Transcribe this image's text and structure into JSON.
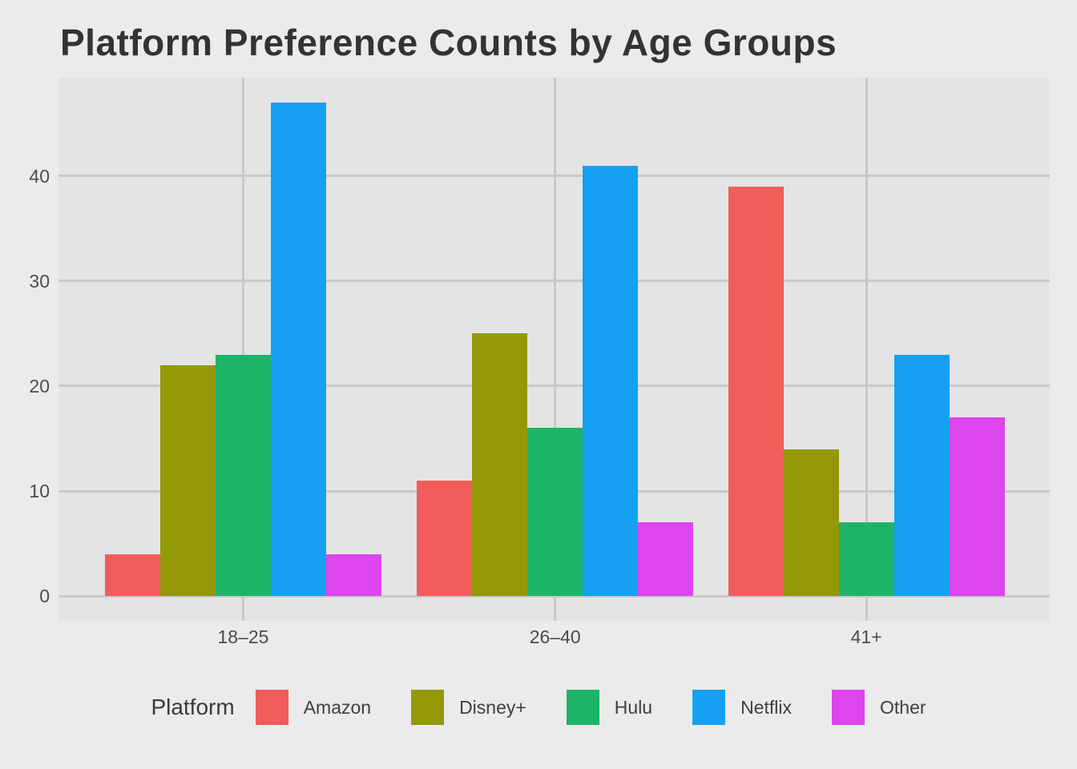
{
  "title": "Platform Preference Counts by Age Groups",
  "colors": {
    "background": "#EBEBEB",
    "panel": "#E4E4E4",
    "gridline": "#C9C9C9",
    "title_text": "#333333",
    "axis_text": "#4C4C4C",
    "legend_text": "#3F3F3F"
  },
  "legend": {
    "title": "Platform",
    "entries": [
      {
        "label": "Amazon",
        "color": "#F25D5B"
      },
      {
        "label": "Disney+",
        "color": "#939906"
      },
      {
        "label": "Hulu",
        "color": "#1EB467"
      },
      {
        "label": "Netflix",
        "color": "#16A0F2"
      },
      {
        "label": "Other",
        "color": "#DD45EE"
      }
    ]
  },
  "chart_data": {
    "type": "bar",
    "title": "Platform Preference Counts by Age Groups",
    "categories": [
      "18–25",
      "26–40",
      "41+"
    ],
    "series": [
      {
        "name": "Amazon",
        "color": "#F25D5B",
        "values": [
          4,
          11,
          39
        ]
      },
      {
        "name": "Disney+",
        "color": "#939906",
        "values": [
          22,
          25,
          14
        ]
      },
      {
        "name": "Hulu",
        "color": "#1EB467",
        "values": [
          23,
          16,
          7
        ]
      },
      {
        "name": "Netflix",
        "color": "#16A0F2",
        "values": [
          47,
          41,
          23
        ]
      },
      {
        "name": "Other",
        "color": "#DD45EE",
        "values": [
          4,
          7,
          17
        ]
      }
    ],
    "xlabel": "",
    "ylabel": "",
    "y_ticks": [
      0,
      10,
      20,
      30,
      40
    ],
    "y_tick_labels": [
      "0",
      "10",
      "20",
      "30",
      "40"
    ],
    "ylim": [
      -2.35,
      49.35
    ],
    "grid": true,
    "grid_style": "major horizontal lines at y ticks; vertical line at each category center",
    "legend_position": "bottom",
    "legend_title": "Platform"
  }
}
